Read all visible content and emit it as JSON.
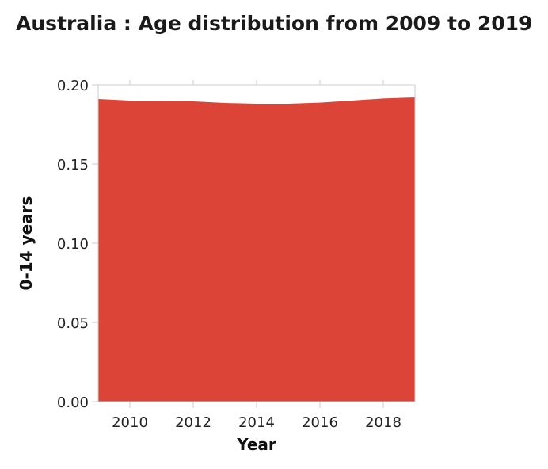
{
  "chart_data": {
    "type": "area",
    "title": "Australia : Age distribution from 2009 to 2019",
    "xlabel": "Year",
    "ylabel": "0-14 years",
    "x": [
      2009,
      2010,
      2011,
      2012,
      2013,
      2014,
      2015,
      2016,
      2017,
      2018,
      2019
    ],
    "series": [
      {
        "values": [
          0.191,
          0.19,
          0.19,
          0.1895,
          0.1885,
          0.188,
          0.188,
          0.1887,
          0.19,
          0.1913,
          0.192
        ]
      }
    ],
    "xlim": [
      2009,
      2019
    ],
    "ylim": [
      0,
      0.2
    ],
    "xticks": [
      2010,
      2012,
      2014,
      2016,
      2018
    ],
    "xtick_labels": [
      "2010",
      "2012",
      "2014",
      "2016",
      "2018"
    ],
    "yticks": [
      0,
      0.05,
      0.1,
      0.15,
      0.2
    ],
    "ytick_labels": [
      "0.00",
      "0.05",
      "0.10",
      "0.15",
      "0.20"
    ],
    "grid": false,
    "colors": {
      "area": "#dc4438",
      "axis": "#cccccc"
    }
  }
}
